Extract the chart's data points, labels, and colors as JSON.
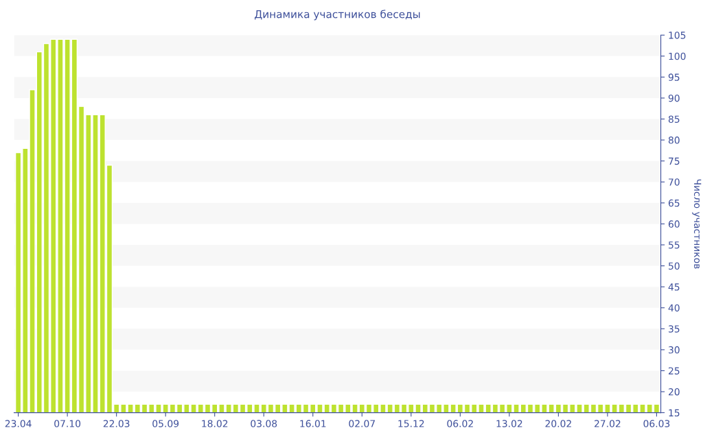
{
  "chart_data": {
    "type": "bar",
    "title": "Динамика участников беседы",
    "ylabel": "Число участников",
    "categories": [
      "23.04",
      null,
      null,
      null,
      null,
      null,
      null,
      "07.10",
      null,
      null,
      null,
      null,
      null,
      null,
      "22.03",
      null,
      null,
      null,
      null,
      null,
      null,
      "05.09",
      null,
      null,
      null,
      null,
      null,
      null,
      "18.02",
      null,
      null,
      null,
      null,
      null,
      null,
      "03.08",
      null,
      null,
      null,
      null,
      null,
      null,
      "16.01",
      null,
      null,
      null,
      null,
      null,
      null,
      "02.07",
      null,
      null,
      null,
      null,
      null,
      null,
      "15.12",
      null,
      null,
      null,
      null,
      null,
      null,
      "06.02",
      null,
      null,
      null,
      null,
      null,
      null,
      "13.02",
      null,
      null,
      null,
      null,
      null,
      null,
      "20.02",
      null,
      null,
      null,
      null,
      null,
      null,
      "27.02",
      null,
      null,
      null,
      null,
      null,
      null,
      "06.03"
    ],
    "values": [
      77,
      78,
      92,
      101,
      103,
      104,
      104,
      104,
      104,
      88,
      86,
      86,
      86,
      74,
      17,
      17,
      17,
      17,
      17,
      17,
      17,
      17,
      17,
      17,
      17,
      17,
      17,
      17,
      17,
      17,
      17,
      17,
      17,
      17,
      17,
      17,
      17,
      17,
      17,
      17,
      17,
      17,
      17,
      17,
      17,
      17,
      17,
      17,
      17,
      17,
      17,
      17,
      17,
      17,
      17,
      17,
      17,
      17,
      17,
      17,
      17,
      17,
      17,
      17,
      17,
      17,
      17,
      17,
      17,
      17,
      17,
      17,
      17,
      17,
      17,
      17,
      17,
      17,
      17,
      17,
      17,
      17,
      17,
      17,
      17,
      17,
      17,
      17,
      17,
      17,
      17,
      17
    ],
    "color": "#bde22f",
    "ylim": [
      15,
      105
    ],
    "yticks": [
      15,
      20,
      25,
      30,
      35,
      40,
      45,
      50,
      55,
      60,
      65,
      70,
      75,
      80,
      85,
      90,
      95,
      100,
      105
    ],
    "legend": false,
    "bands": [
      {
        "axis": "y",
        "from": 20,
        "to": 25,
        "color": "#f7f7f7"
      },
      {
        "axis": "y",
        "from": 30,
        "to": 35,
        "color": "#f7f7f7"
      },
      {
        "axis": "y",
        "from": 40,
        "to": 45,
        "color": "#f7f7f7"
      },
      {
        "axis": "y",
        "from": 50,
        "to": 55,
        "color": "#f7f7f7"
      },
      {
        "axis": "y",
        "from": 60,
        "to": 65,
        "color": "#f7f7f7"
      },
      {
        "axis": "y",
        "from": 70,
        "to": 75,
        "color": "#f7f7f7"
      },
      {
        "axis": "y",
        "from": 80,
        "to": 85,
        "color": "#f7f7f7"
      },
      {
        "axis": "y",
        "from": 90,
        "to": 95,
        "color": "#f7f7f7"
      },
      {
        "axis": "y",
        "from": 100,
        "to": 105,
        "color": "#f7f7f7"
      }
    ]
  }
}
